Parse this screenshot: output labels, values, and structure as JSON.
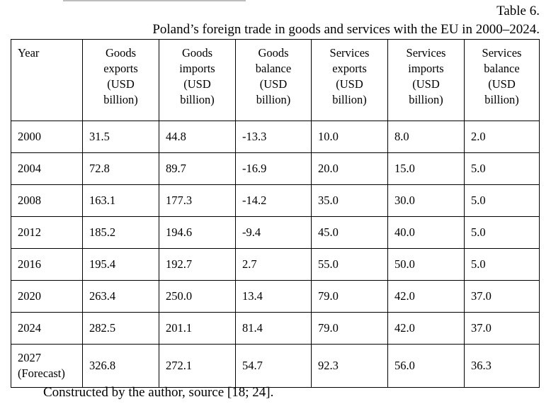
{
  "table_label": "Table 6.",
  "caption": "Poland’s foreign trade in goods and services with the EU in 2000–2024.",
  "headers": [
    [
      "Year"
    ],
    [
      "Goods",
      "exports",
      "(USD",
      "billion)"
    ],
    [
      "Goods",
      "imports",
      "(USD",
      "billion)"
    ],
    [
      "Goods",
      "balance",
      "(USD",
      "billion)"
    ],
    [
      "Services",
      "exports",
      "(USD",
      "billion)"
    ],
    [
      "Services",
      "imports",
      "(USD",
      "billion)"
    ],
    [
      "Services",
      "balance",
      "(USD",
      "billion)"
    ]
  ],
  "rows": [
    {
      "year": "2000",
      "note": "",
      "cells": [
        "31.5",
        "44.8",
        "-13.3",
        "10.0",
        "8.0",
        "2.0"
      ]
    },
    {
      "year": "2004",
      "note": "",
      "cells": [
        "72.8",
        "89.7",
        "-16.9",
        "20.0",
        "15.0",
        "5.0"
      ]
    },
    {
      "year": "2008",
      "note": "",
      "cells": [
        "163.1",
        "177.3",
        "-14.2",
        "35.0",
        "30.0",
        "5.0"
      ]
    },
    {
      "year": "2012",
      "note": "",
      "cells": [
        "185.2",
        "194.6",
        "-9.4",
        "45.0",
        "40.0",
        "5.0"
      ]
    },
    {
      "year": "2016",
      "note": "",
      "cells": [
        "195.4",
        "192.7",
        "2.7",
        "55.0",
        "50.0",
        "5.0"
      ]
    },
    {
      "year": "2020",
      "note": "",
      "cells": [
        "263.4",
        "250.0",
        "13.4",
        "79.0",
        "42.0",
        "37.0"
      ]
    },
    {
      "year": "2024",
      "note": "",
      "cells": [
        "282.5",
        "201.1",
        "81.4",
        "79.0",
        "42.0",
        "37.0"
      ]
    },
    {
      "year": "2027",
      "note": "(Forecast)",
      "cells": [
        "326.8",
        "272.1",
        "54.7",
        "92.3",
        "56.0",
        "36.3"
      ]
    }
  ],
  "footer": "Constructed by the author, source [18; 24]."
}
